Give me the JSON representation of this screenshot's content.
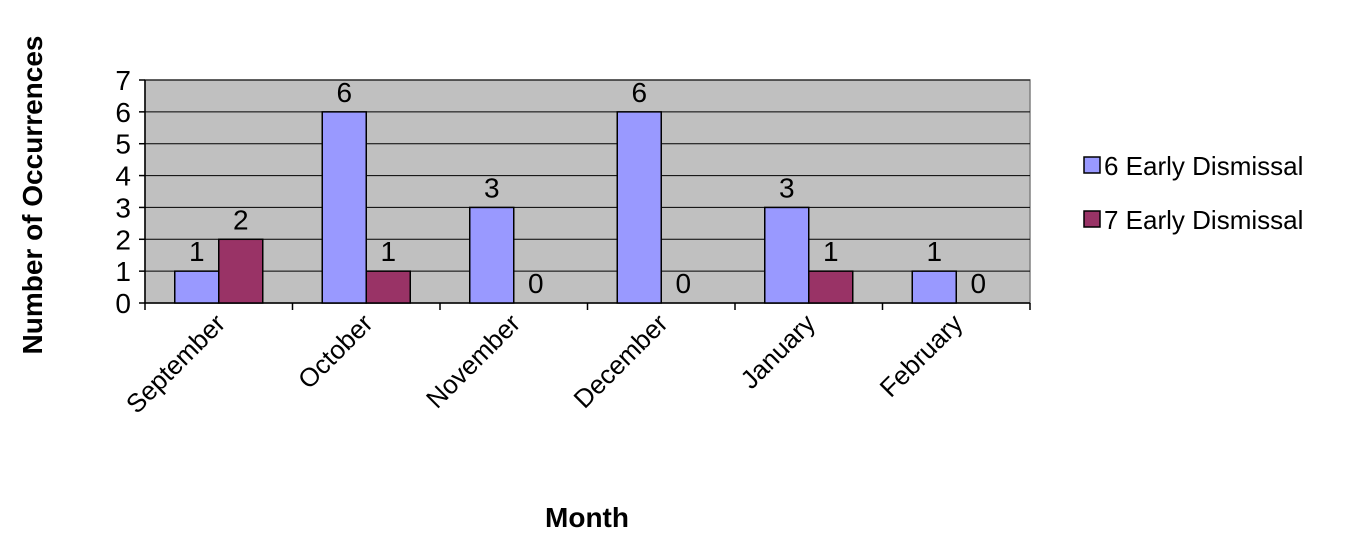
{
  "chart_data": {
    "type": "bar",
    "categories": [
      "September",
      "October",
      "November",
      "December",
      "January",
      "February"
    ],
    "series": [
      {
        "name": "6 Early Dismissal",
        "color": "#9999ff",
        "values": [
          1,
          6,
          3,
          6,
          3,
          1
        ]
      },
      {
        "name": "7 Early Dismissal",
        "color": "#993366",
        "values": [
          2,
          1,
          0,
          0,
          1,
          0
        ]
      }
    ],
    "xlabel": "Month",
    "ylabel": "Number of Occurrences",
    "ylim": [
      0,
      7
    ],
    "yticks": [
      0,
      1,
      2,
      3,
      4,
      5,
      6,
      7
    ],
    "grid": true,
    "plot_background": "#c0c0c0",
    "legend_position": "right"
  }
}
